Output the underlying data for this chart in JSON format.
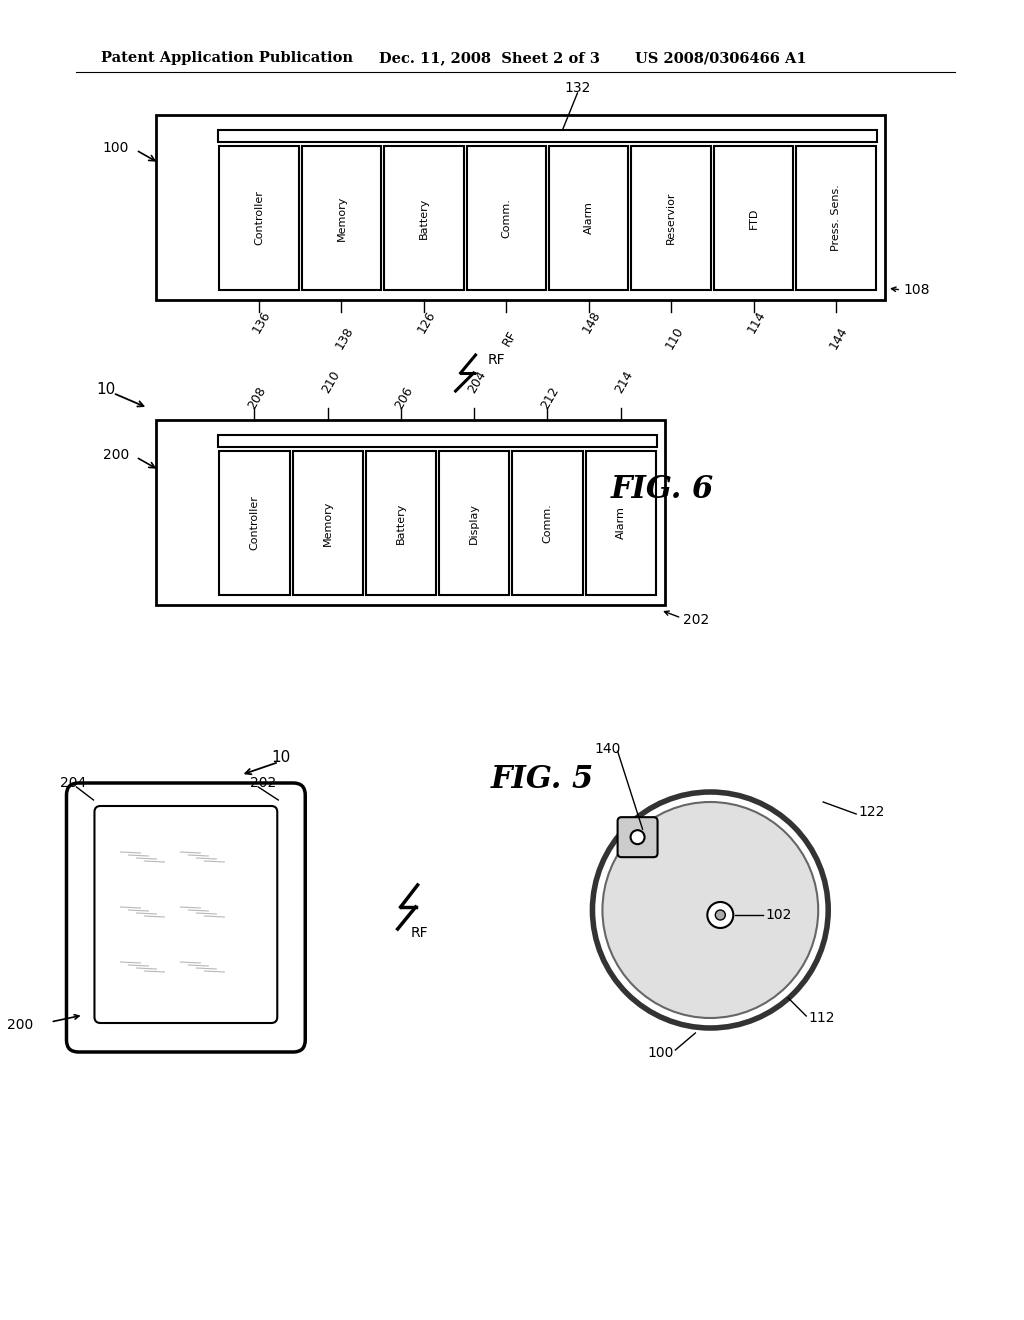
{
  "bg_color": "#ffffff",
  "header_left": "Patent Application Publication",
  "header_mid": "Dec. 11, 2008  Sheet 2 of 3",
  "header_right": "US 2008/0306466 A1",
  "fig6_label": "FIG. 6",
  "fig5_label": "FIG. 5",
  "device100_blocks": [
    "Controller",
    "Memory",
    "Battery",
    "Comm.",
    "Alarm",
    "Reservior",
    "FTD",
    "Press. Sens."
  ],
  "device100_block_labels": [
    "136",
    "138",
    "126",
    "RF",
    "148",
    "110",
    "114",
    "144"
  ],
  "device100_bus_label": "132",
  "device100_outer_label": "108",
  "device200_blocks": [
    "Controller",
    "Memory",
    "Battery",
    "Display",
    "Comm.",
    "Alarm"
  ],
  "device200_block_labels": [
    "208",
    "210",
    "206",
    "204",
    "212",
    "214"
  ],
  "device200_outer_label": "202"
}
